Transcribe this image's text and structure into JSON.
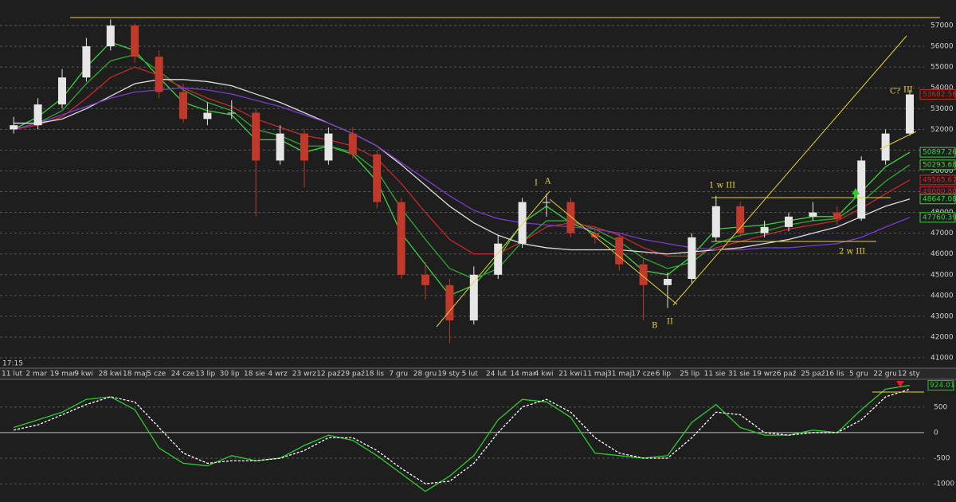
{
  "chart_data": [
    {
      "type": "candlestick",
      "time_label": "17:15",
      "categories": [
        "11 lut",
        "2 mar",
        "19 mar",
        "9 kwi",
        "28 kwi",
        "18 maj",
        "5 cze",
        "24 cze",
        "13 lip",
        "30 lip",
        "18 sie",
        "4 wrz",
        "23 wrz",
        "12 paź",
        "29 paź",
        "18 lis",
        "7 gru",
        "28 gru",
        "19 sty",
        "5 lut",
        "24 lut",
        "14 mar",
        "4 kwi",
        "21 kwi",
        "11 maj",
        "31 maj",
        "17 cze",
        "6 lip",
        "25 lip",
        "11 sie",
        "31 sie",
        "19 wrz",
        "6 paź",
        "25 paź",
        "16 lis",
        "5 gru",
        "22 gru",
        "12 sty"
      ],
      "candles": {
        "open": [
          52000,
          52200,
          53200,
          54500,
          56000,
          57000,
          55500,
          53800,
          52500,
          52800,
          52800,
          50500,
          51800,
          50500,
          51800,
          50800,
          48500,
          45000,
          44500,
          42800,
          45000,
          46500,
          48500,
          48500,
          47000,
          46800,
          45500,
          44500,
          44800,
          46800,
          48300,
          47000,
          47300,
          47800,
          48000,
          47700,
          50500,
          51800
        ],
        "high": [
          52600,
          53500,
          54900,
          56400,
          57300,
          57100,
          55800,
          54200,
          53300,
          53400,
          53000,
          52200,
          52000,
          52100,
          52100,
          51000,
          48700,
          45600,
          44800,
          45400,
          46900,
          48700,
          48900,
          48700,
          47300,
          47000,
          45800,
          45100,
          47000,
          48800,
          48500,
          47600,
          48000,
          48500,
          48300,
          50700,
          52000,
          53900
        ],
        "low": [
          51800,
          52000,
          53000,
          54300,
          55800,
          55200,
          53500,
          52300,
          52200,
          52500,
          47800,
          50300,
          49200,
          50300,
          50600,
          48200,
          44800,
          43800,
          41700,
          42600,
          44800,
          46300,
          47800,
          46800,
          46500,
          45200,
          42800,
          43400,
          44600,
          46600,
          46800,
          46800,
          47100,
          47600,
          47400,
          47600,
          50300,
          51700
        ],
        "close": [
          52200,
          53200,
          54500,
          56000,
          57000,
          55500,
          53800,
          52500,
          52800,
          52800,
          50500,
          51800,
          50500,
          51800,
          50800,
          48500,
          45000,
          44500,
          42800,
          45000,
          46500,
          48500,
          48500,
          47000,
          46800,
          45500,
          44500,
          44800,
          46800,
          48300,
          47000,
          47300,
          47800,
          48000,
          47700,
          50500,
          51800,
          53682.56
        ],
        "up_color": "#e6e6e6",
        "down_color": "#c0392b"
      },
      "series": [
        {
          "color": "#3cd23c",
          "values": [
            52000,
            52600,
            53500,
            55000,
            56200,
            55800,
            54500,
            53300,
            52900,
            52700,
            51500,
            51500,
            50900,
            51200,
            50800,
            49500,
            47000,
            45500,
            44000,
            44500,
            45800,
            47500,
            48300,
            47500,
            47000,
            46200,
            45200,
            45000,
            45900,
            47200,
            47300,
            47400,
            47600,
            47800,
            47800,
            49000,
            50200,
            50897.26
          ]
        },
        {
          "color": "#2eaa2e",
          "values": [
            52000,
            52300,
            52900,
            54200,
            55300,
            55600,
            54800,
            53900,
            53300,
            52900,
            52000,
            51700,
            51200,
            51200,
            50900,
            50000,
            48200,
            46700,
            45300,
            44800,
            45300,
            46600,
            47600,
            47600,
            47200,
            46600,
            45800,
            45300,
            45600,
            46500,
            46900,
            47100,
            47400,
            47600,
            47700,
            48500,
            49500,
            50293.68
          ]
        },
        {
          "color": "#c82828",
          "values": [
            52000,
            52200,
            52600,
            53500,
            54500,
            55000,
            54600,
            54000,
            53500,
            53100,
            52500,
            52100,
            51700,
            51500,
            51200,
            50600,
            49400,
            48000,
            46700,
            46000,
            46000,
            46600,
            47300,
            47500,
            47300,
            46900,
            46300,
            45900,
            45900,
            46300,
            46600,
            46900,
            47200,
            47400,
            47600,
            48200,
            48900,
            49565.67
          ]
        },
        {
          "color": "#dddddd",
          "values": [
            52300,
            52300,
            52500,
            53000,
            53600,
            54200,
            54400,
            54400,
            54300,
            54100,
            53700,
            53300,
            52800,
            52300,
            51800,
            51200,
            50300,
            49300,
            48300,
            47500,
            46900,
            46500,
            46300,
            46200,
            46200,
            46200,
            46100,
            46000,
            46100,
            46200,
            46300,
            46500,
            46700,
            47000,
            47300,
            47800,
            48300,
            48647.08
          ]
        },
        {
          "color": "#7a3cc8",
          "values": [
            52000,
            52300,
            52700,
            53100,
            53500,
            53800,
            53900,
            54000,
            53900,
            53700,
            53400,
            53100,
            52700,
            52300,
            51800,
            51200,
            50400,
            49600,
            48800,
            48100,
            47700,
            47500,
            47400,
            47300,
            47200,
            47000,
            46700,
            46500,
            46300,
            46200,
            46200,
            46300,
            46300,
            46400,
            46500,
            46800,
            47300,
            47760.39
          ]
        }
      ],
      "price_tags": [
        {
          "value": 53682.56,
          "label": "53682.56",
          "color": "#c82828"
        },
        {
          "value": 50897.26,
          "label": "50897.26",
          "color": "#3cd23c"
        },
        {
          "value": 50293.68,
          "label": "50293.68",
          "color": "#3cd23c"
        },
        {
          "value": 49565.67,
          "label": "49565.67",
          "color": "#c82828"
        },
        {
          "value": 49000.8,
          "label": "49000.80",
          "color": "#c82828"
        },
        {
          "value": 48647.08,
          "label": "48647.08",
          "color": "#3cd23c"
        },
        {
          "value": 47760.39,
          "label": "47760.39",
          "color": "#3cd23c"
        }
      ],
      "annotations": [
        "I",
        "A",
        "1 w III",
        "C?",
        "III",
        "2 w III",
        "B",
        "II"
      ],
      "ylim": [
        40580,
        58230
      ],
      "yticks": [
        41000,
        42000,
        43000,
        44000,
        45000,
        46000,
        47000,
        48000,
        49000,
        50000,
        51000,
        52000,
        53000,
        54000,
        55000,
        56000,
        57000
      ],
      "grid": true
    },
    {
      "type": "oscillator",
      "series": [
        {
          "color": "#2ecc2e",
          "style": "solid",
          "values": [
            100,
            250,
            400,
            650,
            700,
            450,
            -300,
            -600,
            -650,
            -450,
            -550,
            -500,
            -250,
            -50,
            -150,
            -450,
            -800,
            -1150,
            -850,
            -450,
            250,
            650,
            600,
            300,
            -400,
            -450,
            -500,
            -450,
            200,
            550,
            100,
            -50,
            -50,
            50,
            0,
            450,
            850,
            924.01
          ]
        },
        {
          "color": "#ffffff",
          "style": "dashed",
          "values": [
            50,
            150,
            350,
            550,
            700,
            600,
            100,
            -400,
            -600,
            -550,
            -550,
            -500,
            -350,
            -100,
            -100,
            -350,
            -700,
            -1000,
            -950,
            -600,
            0,
            500,
            650,
            400,
            -100,
            -400,
            -500,
            -500,
            -100,
            400,
            350,
            0,
            -50,
            0,
            0,
            250,
            700,
            850
          ]
        }
      ],
      "tag": {
        "value": 924.01,
        "label": "924.01",
        "color": "#2ecc2e"
      },
      "ylim": [
        -1357,
        1012
      ],
      "yticks": [
        -1000,
        -500,
        0,
        500
      ],
      "grid": true
    }
  ]
}
